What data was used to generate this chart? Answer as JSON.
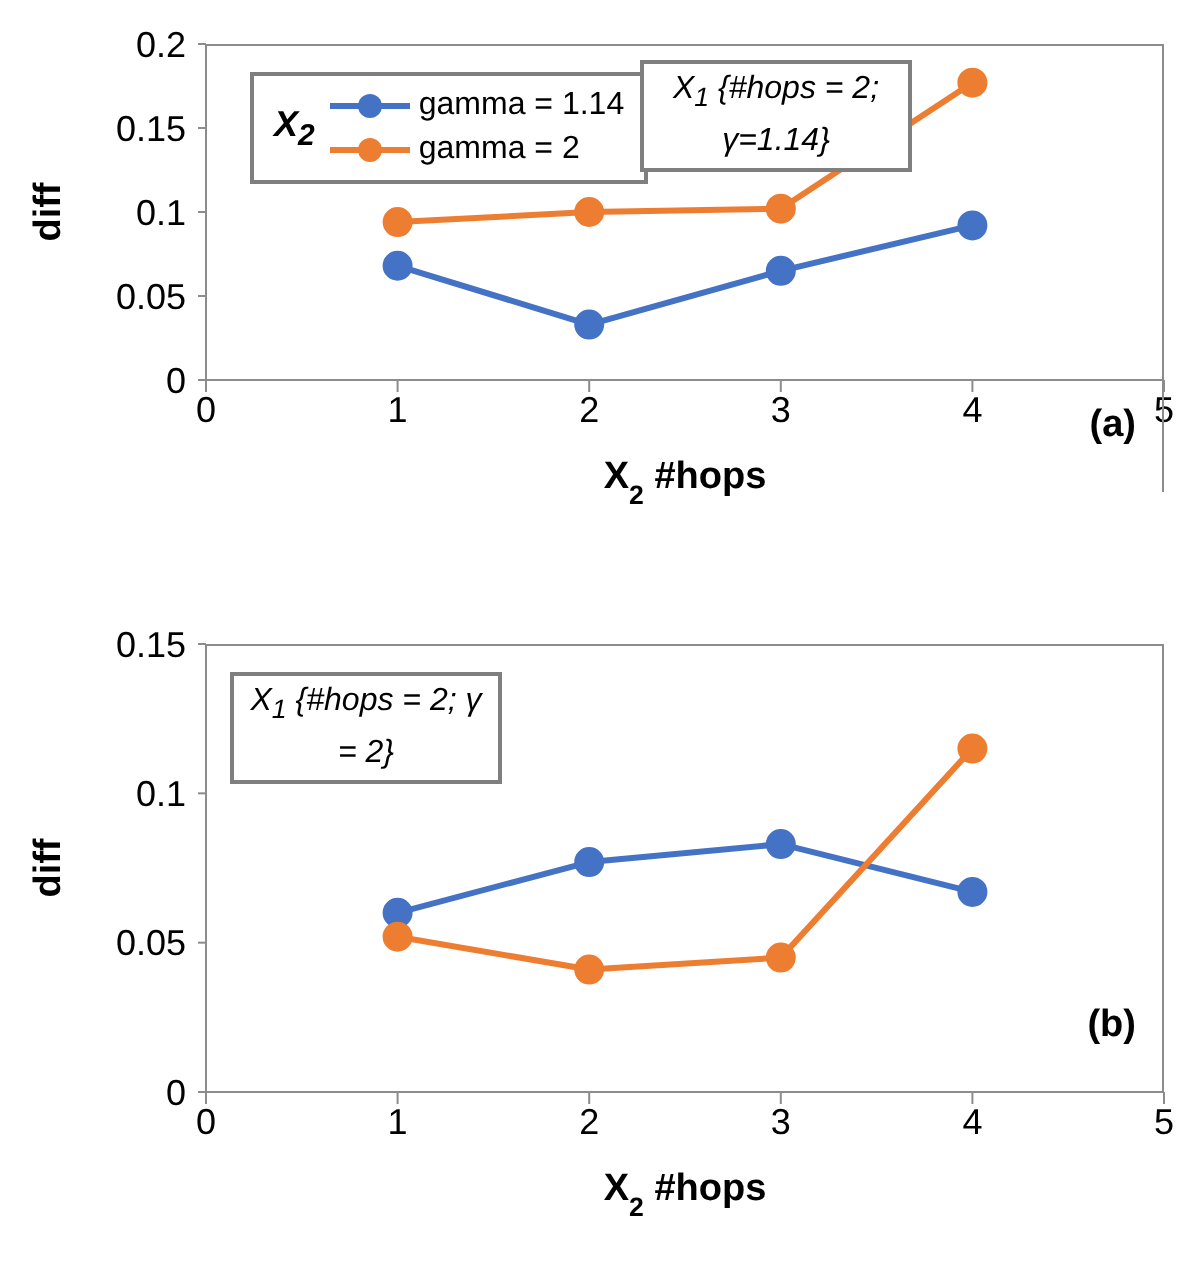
{
  "chart_data": [
    {
      "type": "line",
      "x": [
        1,
        2,
        3,
        4
      ],
      "xlabel": "X$_{2}$ #hops",
      "ylabel": "diff",
      "xlim": [
        0,
        5
      ],
      "xticks": [
        0,
        1,
        2,
        3,
        4,
        5
      ],
      "ylim": [
        0,
        0.2
      ],
      "yticks": [
        0,
        0.05,
        0.1,
        0.15,
        0.2
      ],
      "marker": "circle",
      "legend": "top left",
      "legend_title": "X$_{2}$",
      "annotations": [
        "X$_{1}$ {#hops = 2; γ=1.14}",
        "(a)"
      ],
      "series": [
        {
          "name": "gamma = 1.14",
          "color": "#4472c4",
          "values": [
            0.068,
            0.033,
            0.065,
            0.092
          ]
        },
        {
          "name": "gamma = 2",
          "color": "#ed7d31",
          "values": [
            0.094,
            0.1,
            0.102,
            0.177
          ]
        }
      ]
    },
    {
      "type": "line",
      "x": [
        1,
        2,
        3,
        4
      ],
      "xlabel": "X$_{2}$ #hops",
      "ylabel": "diff",
      "xlim": [
        0,
        5
      ],
      "xticks": [
        0,
        1,
        2,
        3,
        4,
        5
      ],
      "ylim": [
        0,
        0.15
      ],
      "yticks": [
        0,
        0.05,
        0.1,
        0.15
      ],
      "marker": "circle",
      "annotations": [
        "X$_{1}$ {#hops = 2; γ = 2}",
        "(b)"
      ],
      "series": [
        {
          "color": "#4472c4",
          "values": [
            0.06,
            0.077,
            0.083,
            0.067
          ]
        },
        {
          "color": "#ed7d31",
          "values": [
            0.052,
            0.041,
            0.045,
            0.115
          ]
        }
      ]
    }
  ]
}
